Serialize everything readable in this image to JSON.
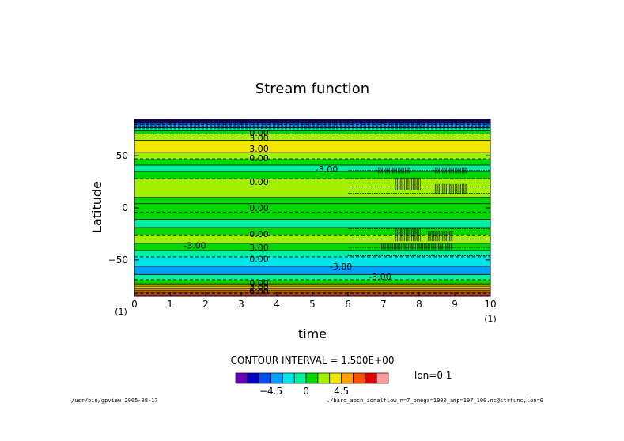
{
  "chart_data": {
    "type": "heatmap",
    "title": "Stream function",
    "xlabel": "time",
    "ylabel": "Latitude",
    "xlim": [
      0,
      10
    ],
    "ylim": [
      -85,
      85
    ],
    "x_ticks": [
      0,
      1,
      2,
      3,
      4,
      5,
      6,
      7,
      8,
      9,
      10
    ],
    "y_ticks": [
      50,
      0,
      -50
    ],
    "y_tick_labels": [
      "50",
      "0",
      "−50"
    ],
    "x_unit_left": "(1)",
    "x_unit_right": "(1)",
    "contour_interval_text": "CONTOUR INTERVAL = 1.500E+00",
    "lon_label": "lon=0 1",
    "colorbar": {
      "levels": [
        -7.5,
        -6,
        -4.5,
        -3,
        -1.5,
        0,
        1.5,
        3,
        4.5,
        6,
        7.5
      ],
      "tick_values": [
        -4.5,
        0,
        4.5
      ],
      "tick_labels": [
        "−4.5",
        "0",
        "4.5"
      ],
      "colors": [
        "#6a00b4",
        "#0000c8",
        "#0050f0",
        "#00a0ff",
        "#00e6e6",
        "#00f0a0",
        "#00d800",
        "#a0f000",
        "#f0e600",
        "#ffa000",
        "#ff5000",
        "#e00000",
        "#ff9a9a"
      ]
    },
    "bands": [
      {
        "lat_min": -85,
        "lat_max": -82,
        "color": "#ff5a5a"
      },
      {
        "lat_min": -82,
        "lat_max": -77,
        "color": "#ffa000"
      },
      {
        "lat_min": -77,
        "lat_max": -73,
        "color": "#f0e600"
      },
      {
        "lat_min": -73,
        "lat_max": -69,
        "color": "#00d800"
      },
      {
        "lat_min": -69,
        "lat_max": -64,
        "color": "#00f0a0"
      },
      {
        "lat_min": -64,
        "lat_max": -56,
        "color": "#00a0ff"
      },
      {
        "lat_min": -56,
        "lat_max": -47,
        "color": "#00e6e6"
      },
      {
        "lat_min": -47,
        "lat_max": -41,
        "color": "#00f0a0"
      },
      {
        "lat_min": -41,
        "lat_max": -34,
        "color": "#00d800"
      },
      {
        "lat_min": -34,
        "lat_max": -26,
        "color": "#a0f000"
      },
      {
        "lat_min": -26,
        "lat_max": -19,
        "color": "#00d800"
      },
      {
        "lat_min": -19,
        "lat_max": -11,
        "color": "#00f0a0"
      },
      {
        "lat_min": -11,
        "lat_max": -4,
        "color": "#00d800"
      },
      {
        "lat_min": -4,
        "lat_max": 4,
        "color": "#00d800"
      },
      {
        "lat_min": 4,
        "lat_max": 10,
        "color": "#00d800"
      },
      {
        "lat_min": 10,
        "lat_max": 28,
        "color": "#a0f000"
      },
      {
        "lat_min": 28,
        "lat_max": 35,
        "color": "#00d800"
      },
      {
        "lat_min": 35,
        "lat_max": 41,
        "color": "#00f0a0"
      },
      {
        "lat_min": 41,
        "lat_max": 47,
        "color": "#00d800"
      },
      {
        "lat_min": 47,
        "lat_max": 53,
        "color": "#a0f000"
      },
      {
        "lat_min": 53,
        "lat_max": 65,
        "color": "#f0e600"
      },
      {
        "lat_min": 65,
        "lat_max": 71,
        "color": "#a0f000"
      },
      {
        "lat_min": 71,
        "lat_max": 74,
        "color": "#00d800"
      },
      {
        "lat_min": 74,
        "lat_max": 77,
        "color": "#00f0a0"
      },
      {
        "lat_min": 77,
        "lat_max": 80,
        "color": "#00a0ff"
      },
      {
        "lat_min": 80,
        "lat_max": 82,
        "color": "#0050f0"
      },
      {
        "lat_min": 82,
        "lat_max": 84,
        "color": "#0000c8"
      },
      {
        "lat_min": 84,
        "lat_max": 85,
        "color": "#6a00b4"
      }
    ],
    "contour_labels": [
      {
        "text": "0.00",
        "time": 3.5,
        "lat": 72
      },
      {
        "text": "3.00",
        "time": 3.5,
        "lat": 67
      },
      {
        "text": "3.00",
        "time": 3.5,
        "lat": 57
      },
      {
        "text": "0.00",
        "time": 3.5,
        "lat": 48
      },
      {
        "text": "-3.00",
        "time": 5.4,
        "lat": 37
      },
      {
        "text": "0.00",
        "time": 3.5,
        "lat": 25
      },
      {
        "text": "0.00",
        "time": 3.5,
        "lat": 0
      },
      {
        "text": "0.00",
        "time": 3.5,
        "lat": -25
      },
      {
        "text": "-3.00",
        "time": 1.7,
        "lat": -36
      },
      {
        "text": "3.00",
        "time": 3.5,
        "lat": -38
      },
      {
        "text": "0.00",
        "time": 3.5,
        "lat": -49
      },
      {
        "text": "-3.00",
        "time": 5.8,
        "lat": -56
      },
      {
        "text": "-3.00",
        "time": 6.9,
        "lat": -66
      },
      {
        "text": "0.00",
        "time": 3.5,
        "lat": -72
      },
      {
        "text": "3.00",
        "time": 3.5,
        "lat": -76
      },
      {
        "text": "6.00",
        "time": 3.5,
        "lat": -80
      }
    ],
    "footer_left": "/usr/bin/gpview  2005-08-17",
    "footer_right": "./baro_abcn_zonalflow_n=7_omega=1000_amp=197_100.nc@strfunc,lon=0"
  }
}
